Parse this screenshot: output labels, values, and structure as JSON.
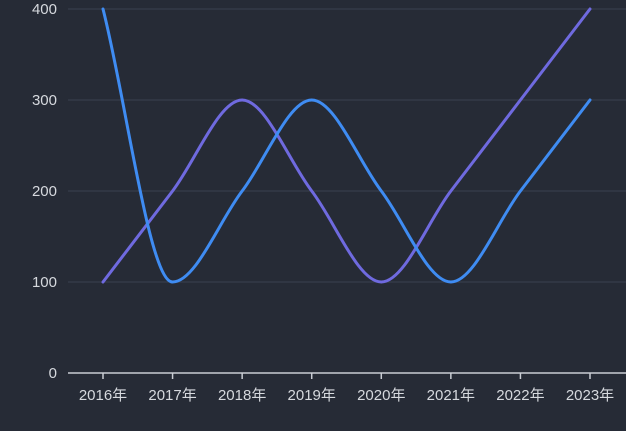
{
  "app": {
    "background_color": "#262B36"
  },
  "chart_data": {
    "type": "line",
    "smooth": true,
    "title": "",
    "xlabel": "",
    "ylabel": "",
    "categories": [
      "2016年",
      "2017年",
      "2018年",
      "2019年",
      "2020年",
      "2021年",
      "2022年",
      "2023年"
    ],
    "series": [
      {
        "name": "line-purple",
        "color": "#6F6ADF",
        "values": [
          100,
          200,
          300,
          200,
          100,
          200,
          300,
          400
        ]
      },
      {
        "name": "line-blue",
        "color": "#3F8CF2",
        "values": [
          400,
          100,
          200,
          300,
          200,
          100,
          200,
          300
        ]
      }
    ],
    "ylim": [
      0,
      400
    ],
    "yticks": [
      0,
      100,
      200,
      300,
      400
    ],
    "ytick_labels": [
      "0",
      "100",
      "200",
      "300",
      "400"
    ],
    "grid": true,
    "legend_position": "none",
    "style": {
      "axis_line_color": "#C9CDD4",
      "axis_label_color": "#D6D9DE",
      "grid_line_color": "#3A4050",
      "line_width": 3
    }
  }
}
